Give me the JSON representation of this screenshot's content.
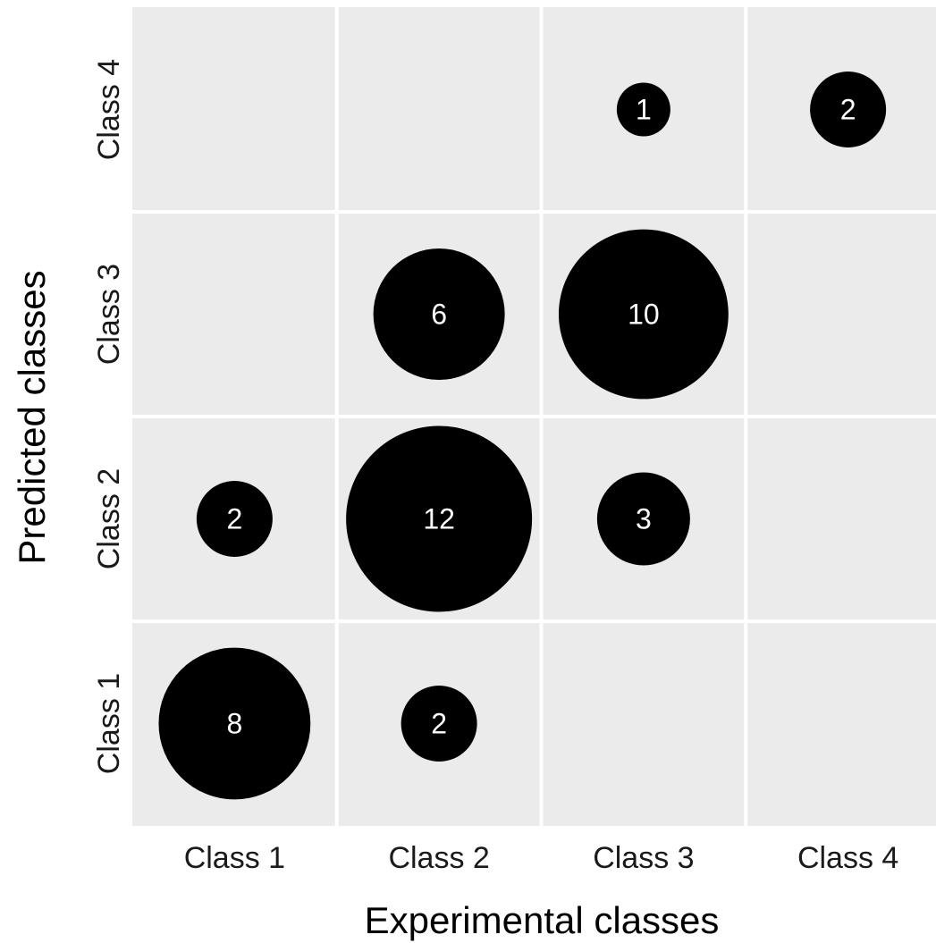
{
  "chart_data": {
    "type": "scatter",
    "title": "",
    "xlabel": "Experimental classes",
    "ylabel": "Predicted classes",
    "x_categories": [
      "Class 1",
      "Class 2",
      "Class 3",
      "Class 4"
    ],
    "y_categories": [
      "Class 1",
      "Class 2",
      "Class 3",
      "Class 4"
    ],
    "grid": true,
    "legend": "none",
    "colors": {
      "panel": "#ebebeb",
      "grid": "#ffffff",
      "bubble": "#000000",
      "bubble_text": "#ffffff"
    },
    "points": [
      {
        "x": "Class 1",
        "y": "Class 1",
        "value": 8
      },
      {
        "x": "Class 2",
        "y": "Class 1",
        "value": 2
      },
      {
        "x": "Class 1",
        "y": "Class 2",
        "value": 2
      },
      {
        "x": "Class 2",
        "y": "Class 2",
        "value": 12
      },
      {
        "x": "Class 3",
        "y": "Class 2",
        "value": 3
      },
      {
        "x": "Class 2",
        "y": "Class 3",
        "value": 6
      },
      {
        "x": "Class 3",
        "y": "Class 3",
        "value": 10
      },
      {
        "x": "Class 3",
        "y": "Class 4",
        "value": 1
      },
      {
        "x": "Class 4",
        "y": "Class 4",
        "value": 2
      }
    ]
  }
}
